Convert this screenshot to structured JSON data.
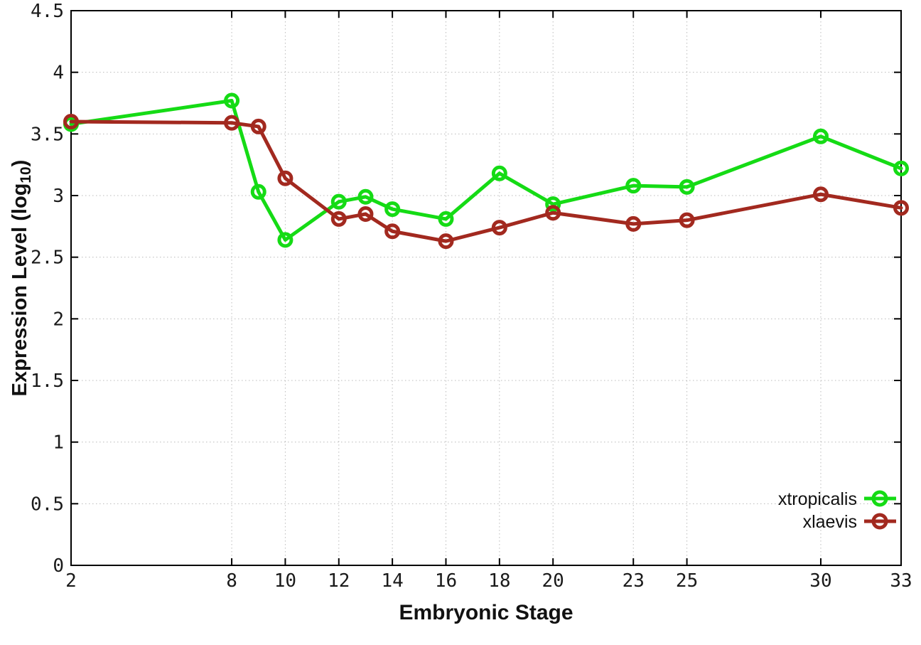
{
  "chart_data": {
    "type": "line",
    "title": "",
    "xlabel": "Embryonic Stage",
    "ylabel": "Expression Level (log10)",
    "ylabel_parts": {
      "prefix": "Expression Level (log",
      "sub": "10",
      "suffix": ")"
    },
    "xlim": [
      2,
      33
    ],
    "ylim": [
      0,
      4.5
    ],
    "grid": true,
    "legend_position": "bottom-right inside plot",
    "x_ticks": [
      2,
      8,
      10,
      12,
      14,
      16,
      18,
      20,
      23,
      25,
      30,
      33
    ],
    "x_tick_labels": [
      "2",
      "8",
      "10",
      "12",
      "14",
      "16",
      "18",
      "20",
      "23",
      "25",
      "30",
      "33"
    ],
    "y_ticks": [
      0,
      0.5,
      1,
      1.5,
      2,
      2.5,
      3,
      3.5,
      4,
      4.5
    ],
    "y_tick_labels": [
      "0",
      "0.5",
      "1",
      "1.5",
      "2",
      "2.5",
      "3",
      "3.5",
      "4",
      "4.5"
    ],
    "x": [
      2,
      8,
      9,
      10,
      12,
      13,
      14,
      16,
      18,
      20,
      23,
      25,
      30,
      33
    ],
    "series": [
      {
        "name": "xtropicalis",
        "color": "#15DB15",
        "marker": "open-circle",
        "values": [
          3.58,
          3.77,
          3.03,
          2.64,
          2.95,
          2.99,
          2.89,
          2.81,
          3.18,
          2.93,
          3.08,
          3.07,
          3.48,
          3.22
        ]
      },
      {
        "name": "xlaevis",
        "color": "#A2291F",
        "marker": "open-circle",
        "values": [
          3.6,
          3.59,
          3.56,
          3.14,
          2.81,
          2.85,
          2.71,
          2.63,
          2.74,
          2.86,
          2.77,
          2.8,
          3.01,
          2.9
        ]
      }
    ],
    "colors": {
      "background": "#ffffff",
      "axis": "#000000",
      "grid": "#bbbbbb",
      "tick_text": "#1a1a1a"
    }
  }
}
